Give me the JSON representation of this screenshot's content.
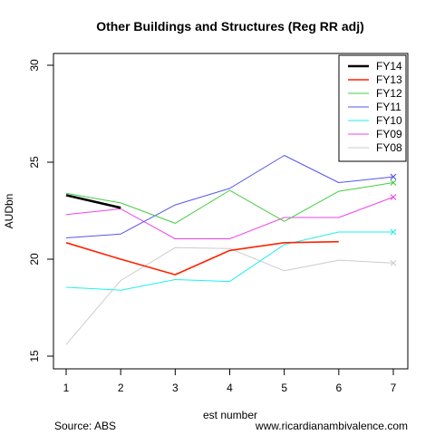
{
  "chart_data": {
    "type": "line",
    "title": "Other Buildings and Structures (Reg RR adj)",
    "xlabel": "est number",
    "ylabel": "AUDbn",
    "xlim": [
      1,
      7
    ],
    "ylim": [
      15,
      30
    ],
    "x_ticks": [
      1,
      2,
      3,
      4,
      5,
      6,
      7
    ],
    "y_ticks": [
      15,
      20,
      25,
      30
    ],
    "grid": false,
    "legend_position": "top-right",
    "series": [
      {
        "name": "FY14",
        "color": "#000000",
        "width": "bold",
        "x": [
          1,
          2
        ],
        "y": [
          23.3,
          22.65
        ],
        "end_marker": false
      },
      {
        "name": "FY13",
        "color": "#ff2200",
        "width": "medium",
        "x": [
          1,
          2,
          3,
          4,
          5,
          6
        ],
        "y": [
          20.85,
          20.0,
          19.2,
          20.45,
          20.85,
          20.9
        ],
        "end_marker": false
      },
      {
        "name": "FY12",
        "color": "#44cc44",
        "width": "normal",
        "x": [
          1,
          2,
          3,
          4,
          5,
          6,
          7
        ],
        "y": [
          23.4,
          22.9,
          21.85,
          23.55,
          21.95,
          23.5,
          23.95
        ],
        "end_marker": true
      },
      {
        "name": "FY11",
        "color": "#5555ee",
        "width": "normal",
        "x": [
          1,
          2,
          3,
          4,
          5,
          6,
          7
        ],
        "y": [
          21.1,
          21.3,
          22.8,
          23.65,
          25.35,
          23.95,
          24.25
        ],
        "end_marker": true
      },
      {
        "name": "FY10",
        "color": "#22eeee",
        "width": "normal",
        "x": [
          1,
          2,
          3,
          4,
          5,
          6,
          7
        ],
        "y": [
          18.55,
          18.4,
          18.95,
          18.85,
          20.75,
          21.4,
          21.4
        ],
        "end_marker": true
      },
      {
        "name": "FY09",
        "color": "#ee44ee",
        "width": "normal",
        "x": [
          1,
          2,
          3,
          4,
          5,
          6,
          7
        ],
        "y": [
          22.3,
          22.6,
          21.05,
          21.05,
          22.15,
          22.15,
          23.2
        ],
        "end_marker": true
      },
      {
        "name": "FY08",
        "color": "#cccccc",
        "width": "normal",
        "x": [
          1,
          2,
          3,
          4,
          5,
          6,
          7
        ],
        "y": [
          15.6,
          18.9,
          20.6,
          20.55,
          19.4,
          19.95,
          19.8
        ],
        "end_marker": true
      }
    ]
  },
  "footer": {
    "source": "Source: ABS",
    "website": "www.ricardianambivalence.com"
  }
}
